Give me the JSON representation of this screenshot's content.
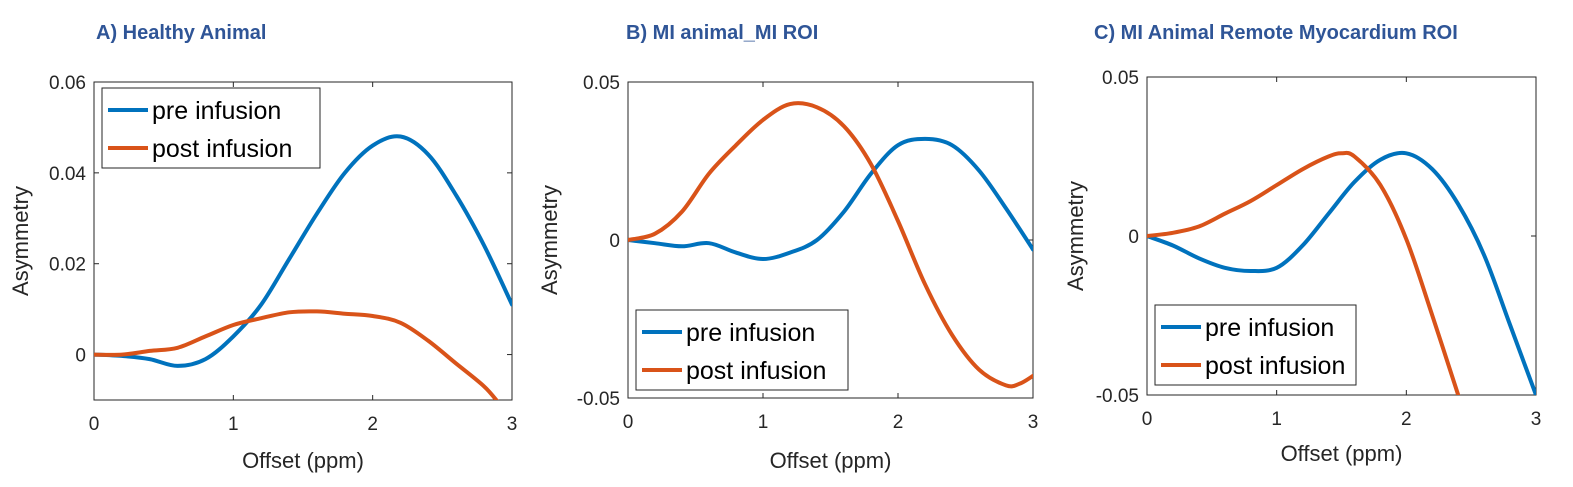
{
  "colors": {
    "pre": "#0072bd",
    "post": "#d95319",
    "title": "#2f5597",
    "axis": "#262626"
  },
  "chart_data": [
    {
      "type": "line",
      "panel_title": "A) Healthy Animal",
      "xlabel": "Offset (ppm)",
      "ylabel": "Asymmetry",
      "xlim": [
        0,
        3
      ],
      "ylim": [
        -0.01,
        0.06
      ],
      "xticks": [
        0,
        1,
        2,
        3
      ],
      "xtick_labels": [
        "0",
        "1",
        "2",
        "3"
      ],
      "yticks": [
        0,
        0.02,
        0.04,
        0.06
      ],
      "ytick_labels": [
        "0",
        "0.02",
        "0.04",
        "0.06"
      ],
      "legend_position": "top-left",
      "series": [
        {
          "name": "pre infusion",
          "color_key": "pre",
          "x": [
            0,
            0.2,
            0.4,
            0.6,
            0.8,
            1.0,
            1.2,
            1.4,
            1.6,
            1.8,
            2.0,
            2.2,
            2.4,
            2.6,
            2.8,
            3.0
          ],
          "y": [
            0,
            -0.0003,
            -0.001,
            -0.0025,
            -0.001,
            0.004,
            0.011,
            0.021,
            0.031,
            0.04,
            0.046,
            0.048,
            0.044,
            0.035,
            0.024,
            0.011
          ]
        },
        {
          "name": "post infusion",
          "color_key": "post",
          "x": [
            0,
            0.2,
            0.4,
            0.6,
            0.8,
            1.0,
            1.2,
            1.4,
            1.6,
            1.8,
            2.0,
            2.2,
            2.4,
            2.6,
            2.8,
            2.9
          ],
          "y": [
            0,
            0,
            0.0008,
            0.0015,
            0.004,
            0.0065,
            0.008,
            0.0093,
            0.0095,
            0.009,
            0.0085,
            0.007,
            0.003,
            -0.002,
            -0.007,
            -0.0105
          ]
        }
      ]
    },
    {
      "type": "line",
      "panel_title": "B) MI animal_MI ROI",
      "xlabel": "Offset (ppm)",
      "ylabel": "Asymmetry",
      "xlim": [
        0,
        3
      ],
      "ylim": [
        -0.05,
        0.05
      ],
      "xticks": [
        0,
        1,
        2,
        3
      ],
      "xtick_labels": [
        "0",
        "1",
        "2",
        "3"
      ],
      "yticks": [
        -0.05,
        0,
        0.05
      ],
      "ytick_labels": [
        "-0.05",
        "0",
        "0.05"
      ],
      "legend_position": "bottom-left",
      "series": [
        {
          "name": "pre infusion",
          "color_key": "pre",
          "x": [
            0,
            0.2,
            0.4,
            0.6,
            0.8,
            1.0,
            1.2,
            1.4,
            1.6,
            1.8,
            2.0,
            2.2,
            2.4,
            2.6,
            2.8,
            3.0
          ],
          "y": [
            0,
            -0.001,
            -0.002,
            -0.001,
            -0.004,
            -0.006,
            -0.004,
            0,
            0.009,
            0.021,
            0.03,
            0.032,
            0.03,
            0.022,
            0.01,
            -0.003
          ]
        },
        {
          "name": "post infusion",
          "color_key": "post",
          "x": [
            0,
            0.2,
            0.4,
            0.6,
            0.8,
            1.0,
            1.2,
            1.4,
            1.6,
            1.8,
            2.0,
            2.2,
            2.4,
            2.6,
            2.8,
            2.9,
            3.0
          ],
          "y": [
            0,
            0.002,
            0.009,
            0.021,
            0.03,
            0.038,
            0.043,
            0.042,
            0.036,
            0.024,
            0.006,
            -0.014,
            -0.03,
            -0.041,
            -0.046,
            -0.0455,
            -0.043
          ]
        }
      ]
    },
    {
      "type": "line",
      "panel_title": "C) MI Animal Remote Myocardium ROI",
      "xlabel": "Offset (ppm)",
      "ylabel": "Asymmetry",
      "xlim": [
        0,
        3
      ],
      "ylim": [
        -0.05,
        0.05
      ],
      "xticks": [
        0,
        1,
        2,
        3
      ],
      "xtick_labels": [
        "0",
        "1",
        "2",
        "3"
      ],
      "yticks": [
        -0.05,
        0,
        0.05
      ],
      "ytick_labels": [
        "-0.05",
        "0",
        "0.05"
      ],
      "legend_position": "bottom-left",
      "series": [
        {
          "name": "pre infusion",
          "color_key": "pre",
          "x": [
            0,
            0.2,
            0.4,
            0.6,
            0.8,
            1.0,
            1.2,
            1.4,
            1.6,
            1.8,
            2.0,
            2.2,
            2.4,
            2.6,
            2.8,
            3.0
          ],
          "y": [
            0,
            -0.003,
            -0.007,
            -0.01,
            -0.011,
            -0.01,
            -0.003,
            0.007,
            0.017,
            0.024,
            0.026,
            0.021,
            0.01,
            -0.006,
            -0.028,
            -0.05
          ]
        },
        {
          "name": "post infusion",
          "color_key": "post",
          "x": [
            0,
            0.2,
            0.4,
            0.6,
            0.8,
            1.0,
            1.2,
            1.4,
            1.5,
            1.6,
            1.8,
            2.0,
            2.2,
            2.4
          ],
          "y": [
            0,
            0.001,
            0.003,
            0.007,
            0.011,
            0.016,
            0.021,
            0.025,
            0.026,
            0.025,
            0.016,
            -0.001,
            -0.025,
            -0.05
          ]
        }
      ]
    }
  ]
}
